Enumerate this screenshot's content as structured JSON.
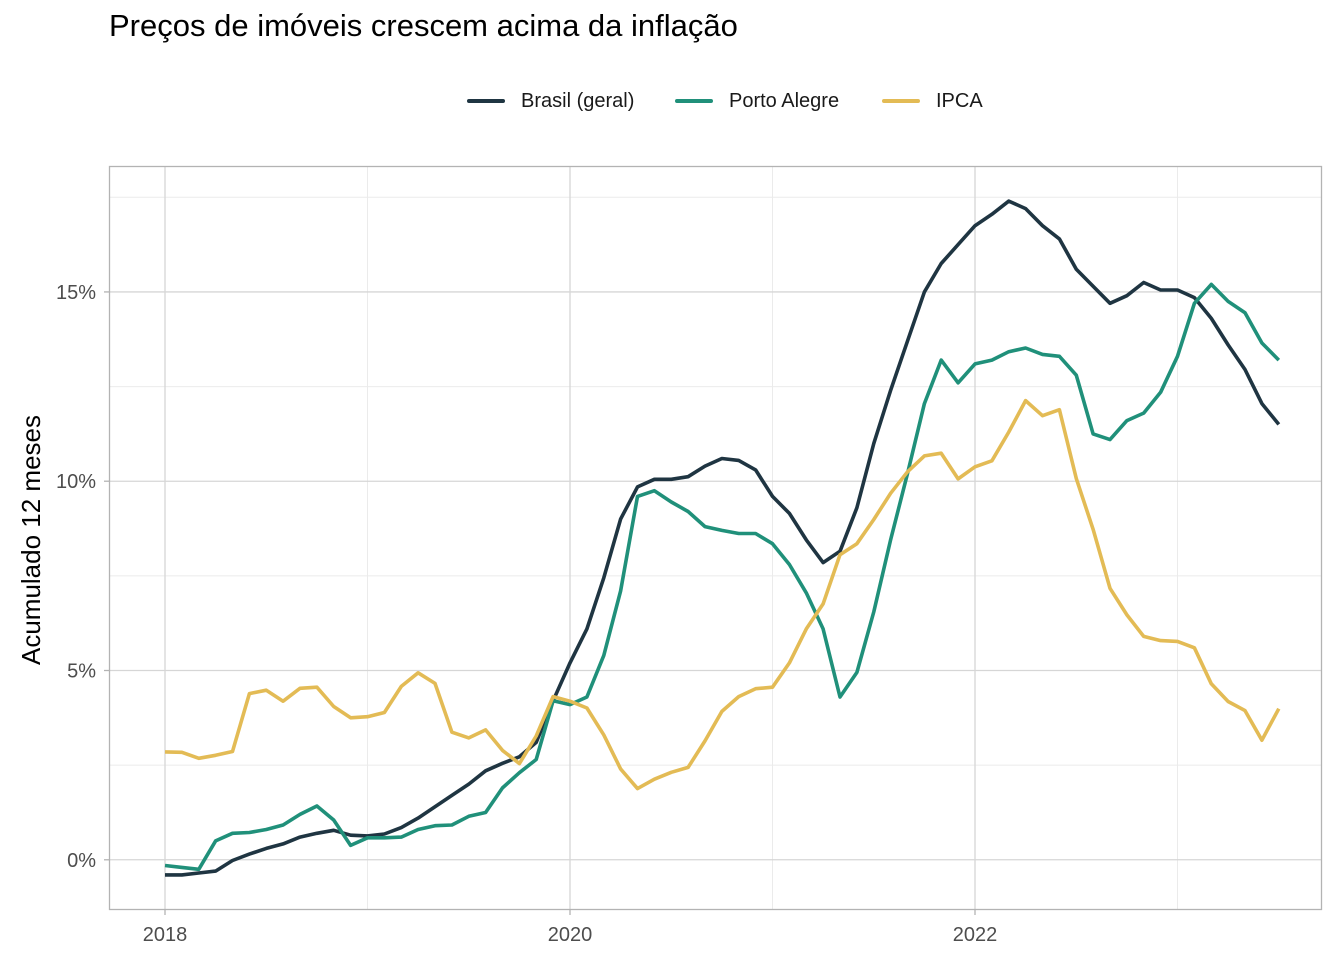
{
  "chart_data": {
    "type": "line",
    "title": "Preços de imóveis crescem acima da inflação",
    "xlabel": "",
    "ylabel": "Acumulado 12 meses",
    "x_start": "2018-01",
    "x_frequency": "monthly",
    "x_ticks": [
      "2018",
      "2020",
      "2022"
    ],
    "y_ticks": [
      "0%",
      "5%",
      "10%",
      "15%"
    ],
    "ylim": [
      -1.3,
      18.3
    ],
    "grid": true,
    "legend_position": "top",
    "series": [
      {
        "name": "Brasil (geral)",
        "color": "#1f3542",
        "values": [
          -0.4,
          -0.4,
          -0.35,
          -0.3,
          -0.02,
          0.15,
          0.3,
          0.42,
          0.6,
          0.7,
          0.78,
          0.65,
          0.63,
          0.68,
          0.85,
          1.1,
          1.4,
          1.7,
          2.0,
          2.35,
          2.55,
          2.72,
          3.1,
          4.2,
          5.2,
          6.1,
          7.45,
          9.0,
          9.85,
          10.05,
          10.05,
          10.12,
          10.4,
          10.6,
          10.55,
          10.3,
          9.6,
          9.15,
          8.45,
          7.85,
          8.15,
          9.3,
          11.0,
          12.4,
          13.7,
          15.0,
          15.75,
          16.25,
          16.75,
          17.05,
          17.4,
          17.2,
          16.75,
          16.4,
          15.6,
          15.15,
          14.7,
          14.9,
          15.25,
          15.05,
          15.05,
          14.85,
          14.3,
          13.6,
          12.95,
          12.05,
          11.5
        ]
      },
      {
        "name": "Porto Alegre",
        "color": "#20907a",
        "values": [
          -0.15,
          -0.2,
          -0.25,
          0.5,
          0.7,
          0.72,
          0.8,
          0.92,
          1.2,
          1.42,
          1.05,
          0.38,
          0.58,
          0.58,
          0.6,
          0.8,
          0.9,
          0.92,
          1.15,
          1.25,
          1.9,
          2.3,
          2.65,
          4.2,
          4.1,
          4.3,
          5.4,
          7.1,
          9.6,
          9.75,
          9.45,
          9.2,
          8.8,
          8.7,
          8.62,
          8.62,
          8.35,
          7.8,
          7.05,
          6.1,
          4.3,
          4.95,
          6.55,
          8.45,
          10.2,
          12.05,
          13.2,
          12.6,
          13.1,
          13.2,
          13.42,
          13.52,
          13.35,
          13.3,
          12.8,
          11.25,
          11.1,
          11.6,
          11.8,
          12.35,
          13.3,
          14.7,
          15.2,
          14.75,
          14.45,
          13.65,
          13.2
        ]
      },
      {
        "name": "IPCA",
        "color": "#e3bb55",
        "values": [
          2.85,
          2.84,
          2.68,
          2.76,
          2.86,
          4.39,
          4.48,
          4.19,
          4.53,
          4.56,
          4.05,
          3.75,
          3.78,
          3.89,
          4.58,
          4.94,
          4.66,
          3.37,
          3.22,
          3.43,
          2.89,
          2.54,
          3.27,
          4.31,
          4.19,
          4.01,
          3.3,
          2.4,
          1.88,
          2.13,
          2.31,
          2.44,
          3.14,
          3.92,
          4.31,
          4.52,
          4.56,
          5.2,
          6.1,
          6.76,
          8.06,
          8.35,
          8.99,
          9.68,
          10.25,
          10.67,
          10.74,
          10.06,
          10.38,
          10.54,
          11.3,
          12.13,
          11.73,
          11.89,
          10.07,
          8.73,
          7.17,
          6.47,
          5.9,
          5.79,
          5.77,
          5.6,
          4.65,
          4.18,
          3.94,
          3.16,
          3.99
        ]
      }
    ]
  }
}
